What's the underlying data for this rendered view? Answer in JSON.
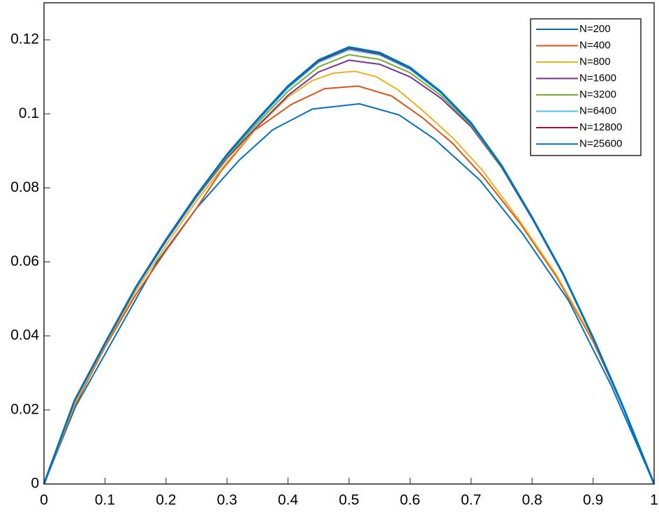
{
  "chart_data": {
    "type": "line",
    "x": [
      0,
      0.05,
      0.1,
      0.15,
      0.2,
      0.25,
      0.3,
      0.35,
      0.4,
      0.45,
      0.5,
      0.55,
      0.6,
      0.65,
      0.7,
      0.75,
      0.8,
      0.85,
      0.9,
      0.95,
      1
    ],
    "series": [
      {
        "name": "N=200",
        "color": "#0072BD",
        "x": [
          0,
          0.052,
          0.185,
          0.25,
          0.32,
          0.375,
          0.44,
          0.517,
          0.582,
          0.64,
          0.715,
          0.785,
          0.86,
          0.93,
          1
        ],
        "values": [
          0,
          0.021,
          0.06,
          0.0745,
          0.0875,
          0.0957,
          0.1013,
          0.1027,
          0.0997,
          0.0932,
          0.082,
          0.0675,
          0.0495,
          0.0265,
          0
        ]
      },
      {
        "name": "N=400",
        "color": "#D95319",
        "x": [
          0,
          0.05,
          0.1,
          0.15,
          0.2,
          0.25,
          0.29,
          0.345,
          0.405,
          0.46,
          0.515,
          0.57,
          0.62,
          0.67,
          0.72,
          0.78,
          0.84,
          0.9,
          0.95,
          1
        ],
        "values": [
          0,
          0.021,
          0.037,
          0.051,
          0.063,
          0.0745,
          0.0845,
          0.0955,
          0.1025,
          0.1068,
          0.1075,
          0.1048,
          0.099,
          0.092,
          0.083,
          0.0705,
          0.056,
          0.0385,
          0.0205,
          0
        ]
      },
      {
        "name": "N=800",
        "color": "#EDB120",
        "x": [
          0,
          0.05,
          0.1,
          0.15,
          0.2,
          0.25,
          0.3,
          0.35,
          0.4,
          0.44,
          0.475,
          0.51,
          0.545,
          0.58,
          0.62,
          0.67,
          0.72,
          0.78,
          0.84,
          0.9,
          0.95,
          1
        ],
        "values": [
          0,
          0.0215,
          0.0375,
          0.052,
          0.0645,
          0.0765,
          0.087,
          0.0965,
          0.1045,
          0.109,
          0.111,
          0.1115,
          0.11,
          0.1065,
          0.101,
          0.0935,
          0.0845,
          0.071,
          0.0565,
          0.039,
          0.0205,
          0
        ]
      },
      {
        "name": "N=1600",
        "color": "#7E2F8E",
        "values": [
          0,
          0.0225,
          0.038,
          0.0528,
          0.0656,
          0.0775,
          0.088,
          0.0967,
          0.105,
          0.1113,
          0.1145,
          0.1134,
          0.11,
          0.1043,
          0.0965,
          0.0855,
          0.0717,
          0.0568,
          0.0395,
          0.0205,
          0
        ]
      },
      {
        "name": "N=3200",
        "color": "#77AC30",
        "values": [
          0,
          0.0225,
          0.038,
          0.0529,
          0.0658,
          0.0777,
          0.0884,
          0.0975,
          0.1061,
          0.1127,
          0.116,
          0.1147,
          0.1111,
          0.105,
          0.0969,
          0.0857,
          0.0718,
          0.0569,
          0.0395,
          0.0205,
          0
        ]
      },
      {
        "name": "N=6400",
        "color": "#4DBEEE",
        "values": [
          0,
          0.0225,
          0.038,
          0.053,
          0.0659,
          0.0779,
          0.0888,
          0.0981,
          0.107,
          0.1139,
          0.1173,
          0.1159,
          0.112,
          0.1057,
          0.0973,
          0.0859,
          0.0719,
          0.057,
          0.0395,
          0.0205,
          0
        ]
      },
      {
        "name": "N=12800",
        "color": "#A2142F",
        "values": [
          0,
          0.0225,
          0.038,
          0.053,
          0.066,
          0.078,
          0.0889,
          0.0984,
          0.1073,
          0.1142,
          0.1177,
          0.1162,
          0.1123,
          0.1059,
          0.0974,
          0.086,
          0.072,
          0.057,
          0.0395,
          0.0205,
          0
        ]
      },
      {
        "name": "N=25600",
        "color": "#0072BD",
        "values": [
          0,
          0.0225,
          0.038,
          0.053,
          0.066,
          0.078,
          0.089,
          0.0985,
          0.1075,
          0.1145,
          0.118,
          0.1165,
          0.1125,
          0.106,
          0.0975,
          0.086,
          0.072,
          0.057,
          0.0395,
          0.0205,
          0
        ]
      }
    ],
    "xlim": [
      0,
      1
    ],
    "xticks": [
      0,
      0.1,
      0.2,
      0.3,
      0.4,
      0.5,
      0.6,
      0.7,
      0.8,
      0.9,
      1
    ],
    "ylim": [
      0,
      0.13
    ],
    "yticks": [
      0,
      0.02,
      0.04,
      0.06,
      0.08,
      0.1,
      0.12
    ],
    "legend": "upper right"
  }
}
